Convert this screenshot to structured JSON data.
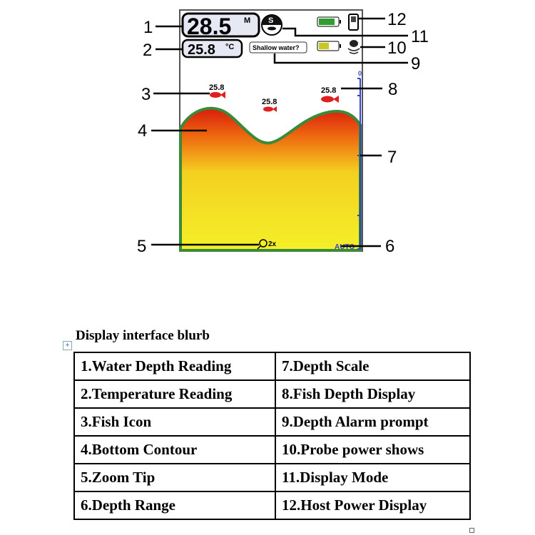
{
  "screen": {
    "depth_value": "28.5",
    "depth_unit": "M",
    "temp_value": "25.8",
    "temp_unit": "°C",
    "mode_letter": "S",
    "alarm_prompt": "Shallow water?",
    "fish": [
      {
        "depth": "25.8"
      },
      {
        "depth": "25.8"
      },
      {
        "depth": "25.8"
      }
    ],
    "scale_top": "0",
    "zoom_tip": "2x",
    "range": "AUTO",
    "colors": {
      "host_battery": "#2e9e2e",
      "probe_battery": "#c8c820",
      "scale": "#3344cc",
      "fish": "#e02020",
      "bottom_top": "#e03010",
      "bottom_low": "#f4f020",
      "grass": "#3a8a3a"
    }
  },
  "callouts": [
    "1",
    "2",
    "3",
    "4",
    "5",
    "6",
    "7",
    "8",
    "9",
    "10",
    "11",
    "12"
  ],
  "caption": "Display interface blurb",
  "table": [
    [
      "1.Water Depth Reading",
      "7.Depth Scale"
    ],
    [
      "2.Temperature Reading",
      "8.Fish Depth Display"
    ],
    [
      "3.Fish Icon",
      "9.Depth Alarm prompt"
    ],
    [
      "4.Bottom Contour",
      "10.Probe power shows"
    ],
    [
      "5.Zoom Tip",
      "11.Display Mode"
    ],
    [
      "6.Depth Range",
      "12.Host Power Display"
    ]
  ]
}
